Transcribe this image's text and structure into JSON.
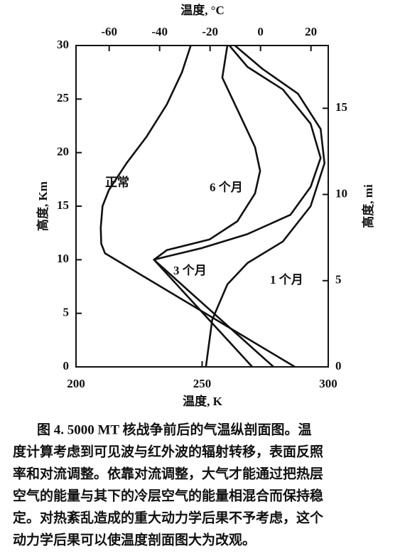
{
  "chart_data": {
    "type": "line",
    "xlabel": "温度, K",
    "x2label": "温度, °C",
    "ylabel": "高度, Km",
    "y2label": "高度, mi",
    "xlim": [
      200,
      300
    ],
    "xticks": [
      200,
      250,
      300
    ],
    "x2lim": [
      -73.15,
      26.85
    ],
    "x2ticks": [
      -60,
      -40,
      -20,
      0,
      20
    ],
    "ylim": [
      0,
      30
    ],
    "yticks": [
      0,
      5,
      10,
      15,
      20,
      25,
      30
    ],
    "y2lim": [
      0,
      18.64
    ],
    "y2ticks": [
      0,
      5,
      10,
      15
    ],
    "grid": false,
    "series": [
      {
        "name": "正常",
        "color": "#111111",
        "x": [
          286.8,
          211.5,
          210,
          209.8,
          210.5,
          213,
          220,
          228,
          236,
          242,
          245.5
        ],
        "values": [
          0,
          10.6,
          11.5,
          13,
          15,
          16.5,
          19,
          21.5,
          24.5,
          27.5,
          30
        ]
      },
      {
        "name": "6 个月",
        "color": "#111111",
        "x": [
          269.9,
          230.9,
          236,
          253,
          264,
          271,
          273,
          271,
          265,
          258,
          260
        ],
        "values": [
          0,
          10,
          10.9,
          11.9,
          13.6,
          16.2,
          18.3,
          20.5,
          23.5,
          27,
          30
        ]
      },
      {
        "name": "3 个月",
        "color": "#111111",
        "x": [
          278.3,
          230.9,
          236,
          250,
          268,
          285,
          293,
          297,
          293,
          282,
          268,
          260.8
        ],
        "values": [
          0,
          10,
          10.3,
          11.1,
          12.4,
          14.2,
          16.8,
          19.5,
          22.7,
          25.9,
          28,
          30
        ]
      },
      {
        "name": "1 个月",
        "color": "#111111",
        "x": [
          251.5,
          254,
          260,
          268,
          282,
          293,
          298.5,
          297,
          288,
          274,
          263
        ],
        "values": [
          0,
          4.4,
          7.7,
          9.7,
          11.7,
          15,
          19,
          22.2,
          25.5,
          27.8,
          30
        ]
      }
    ]
  },
  "caption": {
    "lines": [
      "图 4. 5000 MT 核战争前后的气温纵剖面图。温",
      "度计算考虑到可见波与红外波的辐射转移，表面反照",
      "率和对流调整。依靠对流调整，大气才能通过把热层",
      "空气的能量与其下的冷层空气的能量相混合而保持稳",
      "定。对热紊乱造成的重大动力学后果不予考虑，这个",
      "动力学后果可以使温度剖面图大为改观。"
    ]
  }
}
